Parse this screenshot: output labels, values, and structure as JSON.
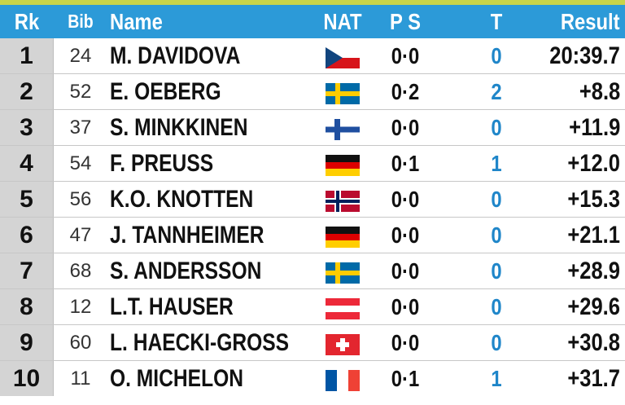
{
  "colors": {
    "header_bg": "#2c9ad8",
    "top_strip": "#c8d44a",
    "rank_bg": "#d4d4d4",
    "t_count": "#1f86c9"
  },
  "header": {
    "rk": "Rk",
    "bib": "Bib",
    "name": "Name",
    "nat": "NAT",
    "ps": "P S",
    "t": "T",
    "result": "Result"
  },
  "rows": [
    {
      "rk": "1",
      "bib": "24",
      "name": "M. DAVIDOVA",
      "flag": "cze",
      "ps": "0·0",
      "t": "0",
      "result": "20:39.7"
    },
    {
      "rk": "2",
      "bib": "52",
      "name": "E. OEBERG",
      "flag": "swe",
      "ps": "0·2",
      "t": "2",
      "result": "+8.8"
    },
    {
      "rk": "3",
      "bib": "37",
      "name": "S. MINKKINEN",
      "flag": "fin",
      "ps": "0·0",
      "t": "0",
      "result": "+11.9"
    },
    {
      "rk": "4",
      "bib": "54",
      "name": "F. PREUSS",
      "flag": "ger",
      "ps": "0·1",
      "t": "1",
      "result": "+12.0"
    },
    {
      "rk": "5",
      "bib": "56",
      "name": "K.O. KNOTTEN",
      "flag": "nor",
      "ps": "0·0",
      "t": "0",
      "result": "+15.3"
    },
    {
      "rk": "6",
      "bib": "47",
      "name": "J. TANNHEIMER",
      "flag": "ger",
      "ps": "0·0",
      "t": "0",
      "result": "+21.1"
    },
    {
      "rk": "7",
      "bib": "68",
      "name": "S. ANDERSSON",
      "flag": "swe",
      "ps": "0·0",
      "t": "0",
      "result": "+28.9"
    },
    {
      "rk": "8",
      "bib": "12",
      "name": "L.T. HAUSER",
      "flag": "aut",
      "ps": "0·0",
      "t": "0",
      "result": "+29.6"
    },
    {
      "rk": "9",
      "bib": "60",
      "name": "L. HAECKI-GROSS",
      "flag": "sui",
      "ps": "0·0",
      "t": "0",
      "result": "+30.8"
    },
    {
      "rk": "10",
      "bib": "11",
      "name": "O. MICHELON",
      "flag": "fra",
      "ps": "0·1",
      "t": "1",
      "result": "+31.7"
    }
  ]
}
